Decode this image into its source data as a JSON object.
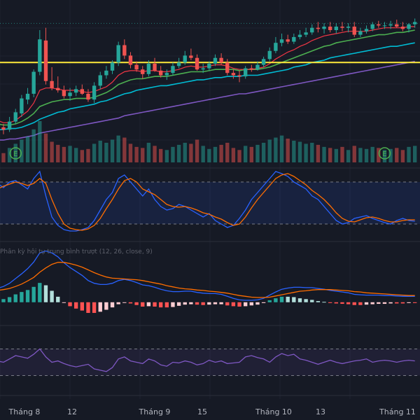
{
  "indicator_titles": {
    "macd": "Phân kỳ hội tụ trung bình trượt (12, 26, close, 9)"
  },
  "x_axis": {
    "labels": [
      "Tháng 8",
      "12",
      "Tháng 9",
      "15",
      "Tháng 10",
      "13",
      "Tháng 11"
    ]
  },
  "colors": {
    "background": "#161a25",
    "up": "#26a69a",
    "down": "#ef5350",
    "ema_fast": "#f23645",
    "ema_mid": "#4caf50",
    "ema_slow": "#00bcd4",
    "ema_long": "#7e57c2",
    "support_line": "#ffeb3b",
    "stoch_k": "#2962ff",
    "stoch_d": "#ff6d00",
    "rsi": "#7e57c2"
  },
  "icons": [
    "earnings-icon",
    "earnings-icon"
  ],
  "chart_data": {
    "type": "candlestick",
    "x": [
      "2024-08-01",
      "2024-08-02",
      "2024-08-05",
      "2024-08-06",
      "2024-08-07",
      "2024-08-08",
      "2024-08-09",
      "2024-08-12",
      "2024-08-13",
      "2024-08-14",
      "2024-08-15",
      "2024-08-16",
      "2024-08-19",
      "2024-08-20",
      "2024-08-21",
      "2024-08-22",
      "2024-08-23",
      "2024-08-26",
      "2024-08-27",
      "2024-08-28",
      "2024-08-29",
      "2024-08-30",
      "2024-09-03",
      "2024-09-04",
      "2024-09-05",
      "2024-09-06",
      "2024-09-09",
      "2024-09-10",
      "2024-09-11",
      "2024-09-12",
      "2024-09-13",
      "2024-09-16",
      "2024-09-17",
      "2024-09-18",
      "2024-09-19",
      "2024-09-20",
      "2024-09-23",
      "2024-09-24",
      "2024-09-25",
      "2024-09-26",
      "2024-09-27",
      "2024-09-30",
      "2024-10-01",
      "2024-10-02",
      "2024-10-03",
      "2024-10-04",
      "2024-10-07",
      "2024-10-08",
      "2024-10-09",
      "2024-10-10",
      "2024-10-11",
      "2024-10-14",
      "2024-10-15",
      "2024-10-16",
      "2024-10-17",
      "2024-10-18",
      "2024-10-21",
      "2024-10-22",
      "2024-10-23",
      "2024-10-24",
      "2024-10-25",
      "2024-10-28",
      "2024-10-29",
      "2024-10-30",
      "2024-10-31",
      "2024-11-01",
      "2024-11-04",
      "2024-11-05",
      "2024-11-06",
      "2024-11-07"
    ],
    "series": [
      {
        "name": "open",
        "values": [
          24.2,
          24.0,
          23.8,
          24.5,
          25.2,
          26.4,
          26.9,
          28.8,
          31.5,
          28.0,
          27.4,
          27.2,
          26.7,
          27.0,
          27.3,
          26.9,
          26.4,
          27.6,
          28.5,
          28.9,
          29.6,
          31.1,
          30.2,
          29.4,
          29.0,
          28.6,
          29.5,
          28.9,
          28.5,
          28.7,
          29.3,
          29.6,
          30.2,
          30.0,
          29.0,
          29.1,
          29.5,
          30.0,
          29.6,
          28.7,
          28.5,
          28.4,
          29.1,
          29.0,
          29.4,
          29.9,
          30.6,
          31.3,
          31.6,
          31.4,
          31.8,
          32.0,
          32.2,
          32.6,
          32.5,
          32.7,
          32.4,
          32.7,
          32.6,
          32.7,
          32.0,
          32.3,
          32.5,
          32.9,
          32.8,
          32.8,
          32.9,
          32.7,
          32.5,
          32.9
        ]
      },
      {
        "name": "high",
        "values": [
          24.4,
          24.3,
          24.9,
          25.6,
          26.8,
          27.4,
          29.0,
          32.4,
          32.6,
          29.2,
          28.4,
          27.6,
          27.4,
          27.6,
          27.7,
          27.3,
          27.9,
          28.8,
          29.3,
          29.8,
          31.4,
          31.6,
          30.5,
          29.7,
          29.3,
          29.8,
          30.0,
          29.3,
          29.0,
          29.6,
          30.0,
          30.6,
          30.8,
          30.3,
          29.5,
          29.7,
          30.3,
          30.4,
          29.9,
          29.0,
          28.9,
          29.3,
          29.4,
          29.7,
          30.1,
          30.9,
          31.8,
          32.1,
          32.0,
          32.1,
          32.4,
          32.6,
          32.9,
          33.1,
          33.0,
          33.1,
          33.0,
          33.1,
          33.0,
          33.1,
          32.6,
          32.8,
          33.1,
          33.2,
          33.1,
          33.2,
          33.3,
          33.1,
          33.0,
          33.4
        ]
      },
      {
        "name": "low",
        "values": [
          23.5,
          23.4,
          23.6,
          24.3,
          24.9,
          26.0,
          26.6,
          28.5,
          27.7,
          27.2,
          27.0,
          26.5,
          26.3,
          26.7,
          26.8,
          26.2,
          26.1,
          27.3,
          28.2,
          28.6,
          29.3,
          29.9,
          29.1,
          28.8,
          28.2,
          28.4,
          28.8,
          28.3,
          28.1,
          28.5,
          29.1,
          29.4,
          29.8,
          28.9,
          28.7,
          28.9,
          29.3,
          29.4,
          28.5,
          28.2,
          27.9,
          28.2,
          28.8,
          28.9,
          29.2,
          29.7,
          30.4,
          31.0,
          31.2,
          31.2,
          31.6,
          31.8,
          32.0,
          32.2,
          32.1,
          32.2,
          32.1,
          32.3,
          32.2,
          31.8,
          31.8,
          32.1,
          32.3,
          32.6,
          32.5,
          32.5,
          32.6,
          32.3,
          32.2,
          32.6
        ]
      },
      {
        "name": "close",
        "values": [
          24.0,
          23.8,
          24.5,
          25.3,
          26.5,
          26.9,
          28.8,
          31.6,
          28.0,
          27.4,
          27.2,
          26.7,
          27.0,
          27.3,
          26.9,
          26.4,
          27.6,
          28.5,
          28.9,
          29.6,
          31.1,
          30.2,
          29.4,
          29.0,
          28.6,
          29.5,
          28.9,
          28.5,
          28.7,
          29.3,
          29.6,
          30.2,
          30.0,
          29.0,
          29.1,
          29.5,
          30.0,
          29.6,
          28.7,
          28.5,
          28.4,
          29.1,
          29.0,
          29.4,
          29.9,
          30.6,
          31.3,
          31.6,
          31.4,
          31.8,
          32.0,
          32.2,
          32.6,
          32.5,
          32.7,
          32.4,
          32.7,
          32.6,
          32.7,
          32.0,
          32.3,
          32.5,
          32.9,
          32.8,
          32.8,
          32.9,
          32.7,
          32.5,
          32.9,
          33.1
        ]
      },
      {
        "name": "volume",
        "values": [
          12,
          9,
          14,
          18,
          22,
          25,
          32,
          40,
          28,
          20,
          17,
          15,
          16,
          14,
          12,
          13,
          18,
          21,
          19,
          22,
          26,
          24,
          18,
          15,
          14,
          19,
          16,
          13,
          12,
          15,
          17,
          19,
          18,
          22,
          16,
          13,
          15,
          17,
          19,
          14,
          12,
          16,
          15,
          17,
          19,
          22,
          24,
          26,
          23,
          21,
          20,
          18,
          19,
          17,
          15,
          14,
          13,
          15,
          12,
          16,
          14,
          13,
          15,
          14,
          12,
          13,
          14,
          12,
          15,
          16
        ]
      }
    ],
    "ema_fast": [
      24.6,
      24.4,
      24.4,
      24.6,
      25.0,
      25.4,
      26.1,
      27.2,
      27.4,
      27.4,
      27.3,
      27.2,
      27.2,
      27.2,
      27.1,
      27.0,
      27.1,
      27.3,
      27.5,
      27.9,
      28.5,
      28.8,
      28.9,
      28.9,
      28.8,
      28.9,
      28.9,
      28.8,
      28.8,
      28.9,
      29.0,
      29.2,
      29.3,
      29.2,
      29.2,
      29.3,
      29.4,
      29.4,
      29.3,
      29.1,
      29.0,
      29.0,
      29.0,
      29.1,
      29.2,
      29.5,
      29.9,
      30.2,
      30.5,
      30.7,
      31.0,
      31.2,
      31.5,
      31.7,
      31.9,
      32.0,
      32.1,
      32.2,
      32.3,
      32.3,
      32.3,
      32.3,
      32.4,
      32.5,
      32.6,
      32.6,
      32.6,
      32.6,
      32.7,
      32.7
    ],
    "ema_mid": [
      24.3,
      24.2,
      24.2,
      24.3,
      24.5,
      24.8,
      25.2,
      25.8,
      26.0,
      26.2,
      26.3,
      26.4,
      26.4,
      26.5,
      26.5,
      26.5,
      26.6,
      26.8,
      27.0,
      27.3,
      27.7,
      27.9,
      28.1,
      28.2,
      28.2,
      28.3,
      28.4,
      28.4,
      28.4,
      28.5,
      28.6,
      28.7,
      28.8,
      28.8,
      28.8,
      28.9,
      29.0,
      29.0,
      29.0,
      29.0,
      28.9,
      29.0,
      29.0,
      29.0,
      29.1,
      29.2,
      29.4,
      29.6,
      29.8,
      30.0,
      30.2,
      30.4,
      30.6,
      30.8,
      31.0,
      31.1,
      31.3,
      31.4,
      31.5,
      31.6,
      31.7,
      31.8,
      31.9,
      32.0,
      32.0,
      32.1,
      32.2,
      32.2,
      32.3,
      32.4
    ],
    "ema_slow": [
      23.8,
      23.8,
      23.9,
      23.9,
      24.0,
      24.2,
      24.4,
      24.7,
      24.9,
      25.1,
      25.3,
      25.4,
      25.6,
      25.7,
      25.8,
      25.9,
      26.0,
      26.2,
      26.3,
      26.5,
      26.7,
      26.9,
      27.0,
      27.2,
      27.3,
      27.4,
      27.5,
      27.6,
      27.6,
      27.7,
      27.8,
      27.9,
      28.0,
      28.1,
      28.1,
      28.2,
      28.3,
      28.3,
      28.4,
      28.4,
      28.4,
      28.5,
      28.5,
      28.5,
      28.6,
      28.7,
      28.8,
      28.9,
      29.0,
      29.2,
      29.3,
      29.4,
      29.6,
      29.7,
      29.8,
      30.0,
      30.1,
      30.2,
      30.3,
      30.4,
      30.5,
      30.6,
      30.7,
      30.8,
      30.9,
      31.0,
      31.0,
      31.1,
      31.2,
      31.3
    ],
    "ema_long": [
      22.9,
      22.9,
      23.0,
      23.0,
      23.1,
      23.2,
      23.3,
      23.5,
      23.6,
      23.7,
      23.8,
      23.9,
      24.0,
      24.1,
      24.2,
      24.3,
      24.4,
      24.5,
      24.6,
      24.7,
      24.8,
      25.0,
      25.1,
      25.2,
      25.3,
      25.4,
      25.5,
      25.6,
      25.7,
      25.8,
      25.9,
      26.0,
      26.1,
      26.2,
      26.3,
      26.4,
      26.5,
      26.6,
      26.7,
      26.8,
      26.9,
      26.9,
      27.0,
      27.1,
      27.2,
      27.3,
      27.4,
      27.5,
      27.6,
      27.7,
      27.8,
      27.9,
      28.0,
      28.1,
      28.2,
      28.3,
      28.4,
      28.5,
      28.6,
      28.7,
      28.8,
      28.9,
      29.0,
      29.1,
      29.2,
      29.3,
      29.4,
      29.5,
      29.6,
      29.7
    ],
    "support_level": 29.6,
    "stoch_k": [
      78,
      72,
      80,
      82,
      76,
      70,
      85,
      95,
      60,
      30,
      18,
      12,
      10,
      10,
      12,
      15,
      25,
      40,
      55,
      65,
      85,
      90,
      80,
      70,
      60,
      70,
      55,
      45,
      40,
      42,
      48,
      45,
      40,
      35,
      30,
      35,
      25,
      20,
      15,
      18,
      28,
      40,
      55,
      65,
      75,
      85,
      95,
      92,
      88,
      80,
      75,
      70,
      60,
      55,
      45,
      35,
      25,
      20,
      22,
      28,
      30,
      32,
      28,
      25,
      22,
      20,
      25,
      28,
      25,
      24
    ],
    "stoch_d": [
      70,
      74,
      77,
      80,
      78,
      75,
      78,
      85,
      78,
      55,
      35,
      20,
      14,
      12,
      11,
      13,
      18,
      28,
      42,
      55,
      70,
      82,
      85,
      80,
      70,
      66,
      62,
      55,
      48,
      45,
      44,
      45,
      43,
      40,
      36,
      34,
      30,
      27,
      22,
      18,
      20,
      30,
      43,
      55,
      65,
      75,
      85,
      90,
      92,
      88,
      82,
      76,
      68,
      62,
      55,
      46,
      36,
      28,
      24,
      23,
      26,
      29,
      30,
      28,
      25,
      23,
      23,
      25,
      26,
      26
    ],
    "macd_line": [
      0.35,
      0.4,
      0.48,
      0.6,
      0.72,
      0.85,
      1.02,
      1.25,
      1.3,
      1.25,
      1.15,
      1.0,
      0.88,
      0.78,
      0.68,
      0.55,
      0.48,
      0.45,
      0.45,
      0.48,
      0.55,
      0.58,
      0.55,
      0.5,
      0.44,
      0.42,
      0.38,
      0.33,
      0.29,
      0.27,
      0.27,
      0.28,
      0.28,
      0.25,
      0.23,
      0.22,
      0.22,
      0.2,
      0.15,
      0.1,
      0.06,
      0.05,
      0.05,
      0.06,
      0.1,
      0.18,
      0.26,
      0.33,
      0.36,
      0.38,
      0.38,
      0.37,
      0.37,
      0.35,
      0.33,
      0.3,
      0.28,
      0.26,
      0.24,
      0.2,
      0.19,
      0.18,
      0.18,
      0.18,
      0.17,
      0.17,
      0.16,
      0.15,
      0.15,
      0.15
    ],
    "macd_signal": [
      0.3,
      0.32,
      0.35,
      0.4,
      0.46,
      0.54,
      0.63,
      0.76,
      0.87,
      0.96,
      1.01,
      1.01,
      0.98,
      0.94,
      0.89,
      0.82,
      0.75,
      0.69,
      0.64,
      0.61,
      0.6,
      0.59,
      0.58,
      0.57,
      0.55,
      0.52,
      0.49,
      0.46,
      0.42,
      0.39,
      0.36,
      0.34,
      0.33,
      0.31,
      0.3,
      0.28,
      0.27,
      0.25,
      0.23,
      0.2,
      0.17,
      0.15,
      0.13,
      0.12,
      0.12,
      0.13,
      0.16,
      0.19,
      0.22,
      0.25,
      0.28,
      0.29,
      0.31,
      0.32,
      0.32,
      0.32,
      0.31,
      0.3,
      0.29,
      0.27,
      0.26,
      0.24,
      0.23,
      0.22,
      0.21,
      0.2,
      0.19,
      0.18,
      0.17,
      0.17
    ],
    "rsi": [
      52,
      50,
      55,
      60,
      58,
      56,
      62,
      70,
      58,
      50,
      52,
      48,
      45,
      43,
      45,
      47,
      40,
      38,
      36,
      42,
      55,
      58,
      52,
      50,
      48,
      55,
      52,
      46,
      44,
      50,
      49,
      52,
      50,
      46,
      48,
      53,
      50,
      52,
      48,
      49,
      50,
      58,
      60,
      57,
      55,
      50,
      58,
      63,
      60,
      62,
      55,
      53,
      50,
      47,
      50,
      53,
      50,
      48,
      50,
      52,
      53,
      55,
      50,
      52,
      53,
      52,
      50,
      52,
      53,
      52
    ]
  }
}
